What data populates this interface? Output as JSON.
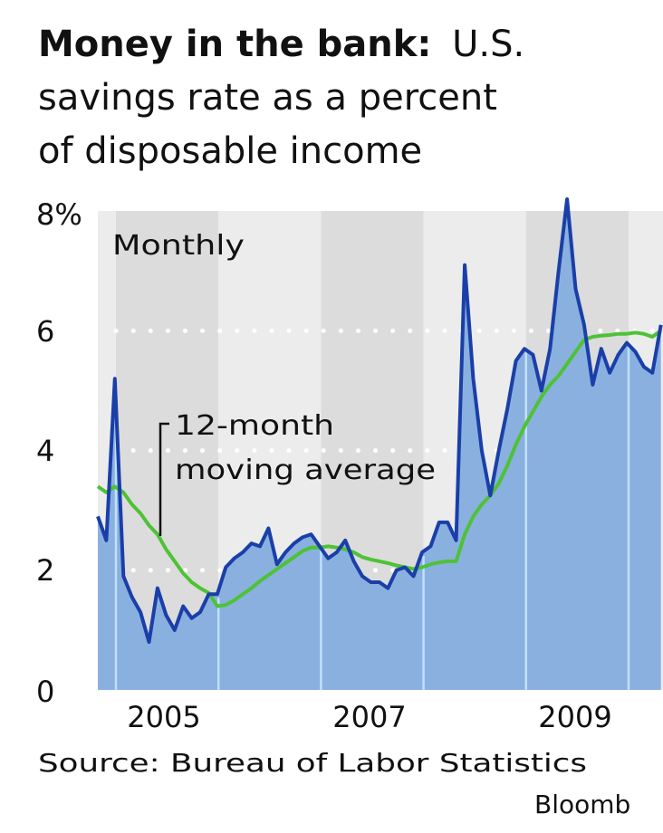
{
  "chart_data": {
    "type": "area",
    "title_bold": "Money in the bank:",
    "title_rest": [
      "U.S.",
      "savings rate as a percent",
      "of disposable income"
    ],
    "inner_label": "Monthly",
    "annotation": [
      "12-month",
      "moving average"
    ],
    "source": "Source: Bureau of Labor Statistics",
    "credit": "Bloomb",
    "ylim": [
      0,
      8
    ],
    "y_ticks": [
      "0",
      "2",
      "4",
      "6",
      "8%"
    ],
    "x_ticks": [
      "2005",
      "2007",
      "2009"
    ],
    "grid": "dotted at 2, 4, 6",
    "colors": {
      "monthly_line": "#1a3fa8",
      "area": "#8ab0e0",
      "average_line": "#4ec236",
      "band_dark": "#dcdcdc",
      "band_light": "#ececec"
    },
    "x": [
      "2004-11",
      "2004-12",
      "2005-01",
      "2005-02",
      "2005-03",
      "2005-04",
      "2005-05",
      "2005-06",
      "2005-07",
      "2005-08",
      "2005-09",
      "2005-10",
      "2005-11",
      "2005-12",
      "2006-01",
      "2006-02",
      "2006-03",
      "2006-04",
      "2006-05",
      "2006-06",
      "2006-07",
      "2006-08",
      "2006-09",
      "2006-10",
      "2006-11",
      "2006-12",
      "2007-01",
      "2007-02",
      "2007-03",
      "2007-04",
      "2007-05",
      "2007-06",
      "2007-07",
      "2007-08",
      "2007-09",
      "2007-10",
      "2007-11",
      "2007-12",
      "2008-01",
      "2008-02",
      "2008-03",
      "2008-04",
      "2008-05",
      "2008-06",
      "2008-07",
      "2008-08",
      "2008-09",
      "2008-10",
      "2008-11",
      "2008-12",
      "2009-01",
      "2009-02",
      "2009-03",
      "2009-04",
      "2009-05",
      "2009-06",
      "2009-07",
      "2009-08",
      "2009-09",
      "2009-10",
      "2009-11",
      "2009-12",
      "2010-01",
      "2010-02",
      "2010-03",
      "2010-04",
      "2010-05"
    ],
    "series": [
      {
        "name": "Monthly",
        "values": [
          2.9,
          2.5,
          5.2,
          1.9,
          1.55,
          1.3,
          0.8,
          1.7,
          1.25,
          1.0,
          1.4,
          1.2,
          1.3,
          1.6,
          1.6,
          2.05,
          2.2,
          2.3,
          2.45,
          2.4,
          2.7,
          2.1,
          2.3,
          2.45,
          2.55,
          2.6,
          2.4,
          2.2,
          2.3,
          2.5,
          2.15,
          1.9,
          1.8,
          1.8,
          1.7,
          2.0,
          2.05,
          1.9,
          2.3,
          2.4,
          2.8,
          2.8,
          2.5,
          7.1,
          5.2,
          4.0,
          3.25,
          4.0,
          4.7,
          5.5,
          5.7,
          5.6,
          5.0,
          5.7,
          7.0,
          8.2,
          6.7,
          6.1,
          5.1,
          5.7,
          5.3,
          5.6,
          5.8,
          5.65,
          5.4,
          5.3,
          6.1
        ]
      },
      {
        "name": "12-month moving average",
        "values": [
          3.4,
          3.3,
          3.4,
          3.3,
          3.1,
          2.95,
          2.75,
          2.6,
          2.35,
          2.15,
          1.95,
          1.8,
          1.7,
          1.62,
          1.4,
          1.42,
          1.5,
          1.6,
          1.7,
          1.82,
          1.92,
          2.02,
          2.12,
          2.22,
          2.32,
          2.38,
          2.38,
          2.4,
          2.38,
          2.35,
          2.3,
          2.22,
          2.18,
          2.15,
          2.12,
          2.08,
          2.05,
          2.02,
          2.05,
          2.1,
          2.13,
          2.15,
          2.15,
          2.6,
          2.9,
          3.1,
          3.25,
          3.45,
          3.75,
          4.1,
          4.4,
          4.65,
          4.9,
          5.1,
          5.25,
          5.45,
          5.65,
          5.85,
          5.9,
          5.92,
          5.93,
          5.95,
          5.95,
          5.97,
          5.95,
          5.9,
          6.0
        ]
      }
    ]
  }
}
